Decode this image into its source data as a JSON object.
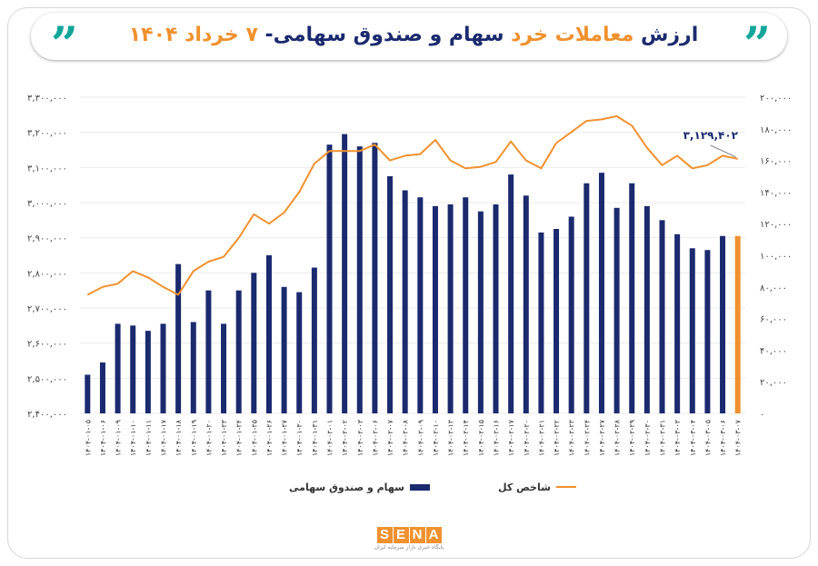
{
  "header": {
    "title_part1": "ارزش ",
    "title_part2": "معاملات خرد",
    "title_part3": " سهام و صندوق سهامی- ",
    "title_part4": "۷ خرداد ۱۴۰۴",
    "quote_glyph": "”"
  },
  "chart_data": {
    "type": "bar+line",
    "categories": [
      "۱۴۰۴-۰۱-۰۵",
      "۱۴۰۴-۰۱-۰۶",
      "۱۴۰۴-۰۱-۰۹",
      "۱۴۰۴-۰۱-۱۰",
      "۱۴۰۴-۰۱-۱۱",
      "۱۴۰۴-۰۱-۱۷",
      "۱۴۰۴-۰۱-۱۸",
      "۱۴۰۴-۰۱-۱۹",
      "۱۴۰۴-۰۱-۲۰",
      "۱۴۰۴-۰۱-۲۳",
      "۱۴۰۴-۰۱-۲۴",
      "۱۴۰۴-۰۱-۲۵",
      "۱۴۰۴-۰۱-۲۶",
      "۱۴۰۴-۰۱-۲۷",
      "۱۴۰۴-۰۱-۳۰",
      "۱۴۰۴-۰۱-۳۱",
      "۱۴۰۴-۰۲-۰۱",
      "۱۴۰۴-۰۲-۰۲",
      "۱۴۰۴-۰۲-۰۳",
      "۱۴۰۴-۰۲-۰۶",
      "۱۴۰۴-۰۲-۰۷",
      "۱۴۰۴-۰۲-۰۸",
      "۱۴۰۴-۰۲-۰۹",
      "۱۴۰۴-۰۲-۱۰",
      "۱۴۰۴-۰۲-۱۳",
      "۱۴۰۴-۰۲-۱۴",
      "۱۴۰۴-۰۲-۱۵",
      "۱۴۰۴-۰۲-۱۶",
      "۱۴۰۴-۰۲-۱۷",
      "۱۴۰۴-۰۲-۲۰",
      "۱۴۰۴-۰۲-۲۱",
      "۱۴۰۴-۰۲-۲۲",
      "۱۴۰۴-۰۲-۲۳",
      "۱۴۰۴-۰۲-۲۴",
      "۱۴۰۴-۰۲-۲۷",
      "۱۴۰۴-۰۲-۲۸",
      "۱۴۰۴-۰۲-۲۹",
      "۱۴۰۴-۰۲-۳۰",
      "۱۴۰۴-۰۲-۳۱",
      "۱۴۰۴-۰۳-۰۳",
      "۱۴۰۴-۰۳-۰۴",
      "۱۴۰۴-۰۳-۰۵",
      "۱۴۰۴-۰۳-۰۶",
      "۱۴۰۴-۰۳-۰۷"
    ],
    "series": [
      {
        "name": "سهام و صندوق سهامی",
        "type": "bar",
        "axis": "left",
        "color": "#1b2a6e",
        "last_color": "#f0912f",
        "values": [
          2510000,
          2545000,
          2655000,
          2650000,
          2635000,
          2655000,
          2825000,
          2660000,
          2750000,
          2655000,
          2750000,
          2800000,
          2850000,
          2760000,
          2745000,
          2815000,
          3165000,
          3195000,
          3160000,
          3170000,
          3075000,
          3035000,
          3015000,
          2990000,
          2995000,
          3015000,
          2975000,
          2995000,
          3080000,
          3020000,
          2915000,
          2925000,
          2960000,
          3055000,
          3085000,
          2985000,
          3055000,
          2990000,
          2950000,
          2910000,
          2870000,
          2865000,
          2905000,
          2905000
        ]
      },
      {
        "name": "شاخص کل",
        "type": "line",
        "axis": "right",
        "color": "#f0912f",
        "values": [
          75000,
          80000,
          82000,
          90000,
          86000,
          80000,
          75000,
          90000,
          96000,
          99000,
          111000,
          126000,
          120000,
          127000,
          140000,
          158000,
          166000,
          166000,
          166000,
          170000,
          160000,
          163000,
          164000,
          173000,
          160000,
          155000,
          156000,
          159000,
          172000,
          160000,
          155000,
          171000,
          178000,
          185000,
          186000,
          188000,
          182000,
          168000,
          157000,
          163000,
          155000,
          157000,
          163000,
          161000
        ]
      }
    ],
    "left_axis": {
      "ticks": [
        "۲,۴۰۰,۰۰۰",
        "۲,۵۰۰,۰۰۰",
        "۲,۶۰۰,۰۰۰",
        "۲,۷۰۰,۰۰۰",
        "۲,۸۰۰,۰۰۰",
        "۲,۹۰۰,۰۰۰",
        "۳,۰۰۰,۰۰۰",
        "۳,۱۰۰,۰۰۰",
        "۳,۲۰۰,۰۰۰",
        "۳,۳۰۰,۰۰۰"
      ],
      "ylim": [
        2400000,
        3300000
      ]
    },
    "right_axis": {
      "ticks": [
        "۰",
        "۲۰,۰۰۰",
        "۴۰,۰۰۰",
        "۶۰,۰۰۰",
        "۸۰,۰۰۰",
        "۱۰۰,۰۰۰",
        "۱۲۰,۰۰۰",
        "۱۴۰,۰۰۰",
        "۱۶۰,۰۰۰",
        "۱۸۰,۰۰۰",
        "۲۰۰,۰۰۰"
      ],
      "ylim": [
        0,
        200000
      ]
    },
    "annotation": "۳,۱۲۹,۴۰۲",
    "grid": true,
    "legend_position": "bottom"
  },
  "legend": {
    "bar_label": "سهام و صندوق سهامی",
    "line_label": "شاخص کل"
  },
  "logo": {
    "letters": [
      "S",
      "E",
      "N",
      "A"
    ],
    "subtitle": "پایگاه خبری بازار سرمایه ایران"
  }
}
